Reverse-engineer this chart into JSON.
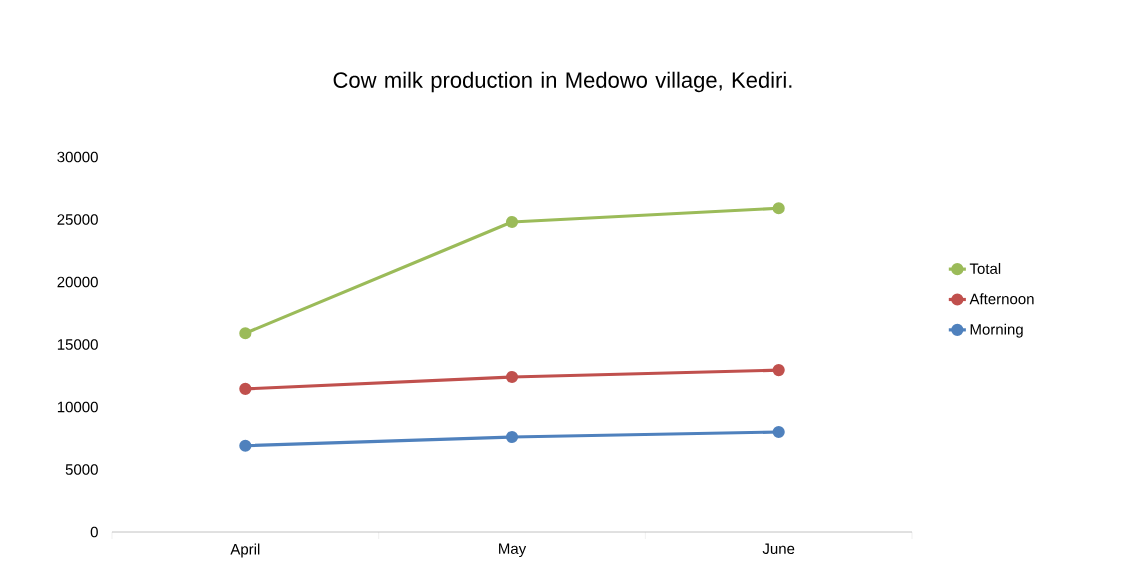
{
  "chart_data": {
    "type": "line",
    "title": "Cow milk production in Medowo village, Kediri.",
    "categories": [
      "April",
      "May",
      "June"
    ],
    "series": [
      {
        "name": "Total",
        "color": "#9bbb59",
        "values": [
          15900,
          24800,
          25900
        ]
      },
      {
        "name": "Afternoon",
        "color": "#c0504d",
        "values": [
          11450,
          12400,
          12950
        ]
      },
      {
        "name": "Morning",
        "color": "#4f81bd",
        "values": [
          6900,
          7600,
          8000
        ]
      }
    ],
    "ylim": [
      0,
      30000
    ],
    "yticks": [
      0,
      5000,
      10000,
      15000,
      20000,
      25000,
      30000
    ],
    "legend": "right",
    "marker": "circle",
    "grid": false
  }
}
